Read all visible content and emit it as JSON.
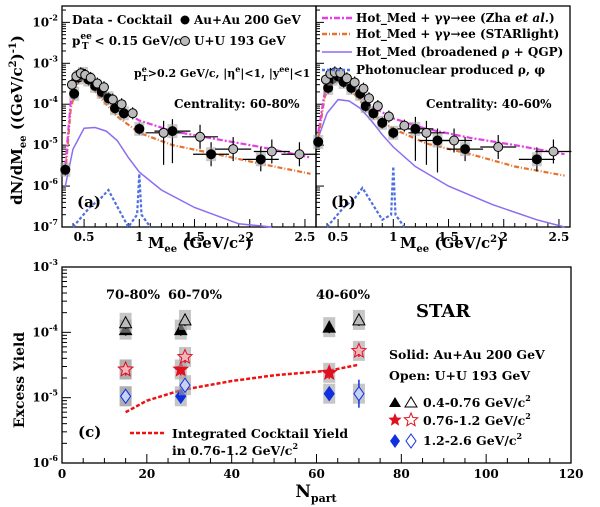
{
  "colors": {
    "frame": "#000000",
    "hot_med_zha": "#e53fe5",
    "hot_med_starlight": "#e8712d",
    "broadened": "#8c6cf0",
    "photonuclear": "#4f6fe0",
    "red_star": "#e01020",
    "blue_diamond": "#1030e0",
    "cocktail_line": "#ee1111",
    "sys_box": "#a0a0a0",
    "open_marker": "#bbbbbb"
  },
  "panel_a": {
    "tag": "(a)",
    "legend": {
      "row1": "Data - Cocktail",
      "au": "Au+Au 200 GeV",
      "row2": "p",
      "row2_sup": "ee",
      "row2_sub": "T",
      "row2_rest": "< 0.15 GeV/c",
      "uu": "U+U 193 GeV",
      "cut_p": "p",
      "cut_sup": "e",
      "cut_sub": "T",
      "cut_rest": ">0.2 GeV/c, |η",
      "cut_eta_sup": "e",
      "cut_mid": "|<1, |y",
      "cut_y_sup": "ee",
      "cut_end": "|<1",
      "centrality": "Centrality: 60-80%"
    }
  },
  "panel_b": {
    "tag": "(b)",
    "legend": {
      "l1a": "Hot_Med +  γγ→ee (Zha ",
      "l1b": "et al.",
      "l1c": ")",
      "l2": "Hot_Med +  γγ→ee (STARlight)",
      "l3": "Hot_Med (broadened  ρ + QGP)",
      "l4": "Photonuclear produced  ρ,  φ",
      "centrality": "Centrality: 40-60%"
    }
  },
  "panel_c": {
    "tag": "(c)",
    "star": "STAR",
    "solid": "Solid: Au+Au 200 GeV",
    "open": "Open: U+U 193 GeV",
    "bins": [
      "0.4-0.76 GeV/c",
      "0.76-1.2 GeV/c",
      "1.2-2.6  GeV/c"
    ],
    "bin_sup": "2",
    "cocktail1": "Integrated Cocktail Yield",
    "cocktail2": "in 0.76-1.2 GeV/c",
    "cocktail2_sup": "2",
    "cent_labels": [
      "70-80%",
      "60-70%",
      "40-60%"
    ]
  },
  "chart_data": [
    {
      "type": "scatter",
      "panel": "a",
      "xlabel": "M",
      "xlabel_sub": "ee",
      "xlabel_unit": " (GeV/c",
      "xlabel_sup": "2",
      "xlabel_end": ")",
      "ylabel": "dN/dM",
      "ylabel_sub": "ee",
      "ylabel_unit": " ((GeV/c",
      "ylabel_sup": "2",
      "ylabel_end": ")",
      "ylabel_sup2": "-1",
      "ylabel_close": ")",
      "xlim": [
        0.3,
        2.6
      ],
      "ylim_log10": [
        -7,
        -1.6
      ],
      "x_ticks": [
        "0.5",
        "1",
        "1.5",
        "2",
        "2.5"
      ],
      "y_ticks": [
        "10^-7",
        "10^-6",
        "10^-5",
        "10^-4",
        "10^-3",
        "10^-2"
      ],
      "au_points": [
        [
          0.33,
          2.5e-06
        ],
        [
          0.41,
          0.00018
        ],
        [
          0.45,
          0.00045
        ],
        [
          0.49,
          0.00055
        ],
        [
          0.54,
          0.0004
        ],
        [
          0.6,
          0.00028
        ],
        [
          0.66,
          0.0002
        ],
        [
          0.72,
          0.00014
        ],
        [
          0.78,
          8e-05
        ],
        [
          0.86,
          6e-05
        ],
        [
          1.0,
          2.5e-05
        ],
        [
          1.3,
          2.2e-05
        ],
        [
          1.65,
          6e-06
        ],
        [
          2.1,
          4.5e-06
        ]
      ],
      "uu_points": [
        [
          0.39,
          0.0003
        ],
        [
          0.43,
          0.00048
        ],
        [
          0.47,
          0.00057
        ],
        [
          0.51,
          0.00052
        ],
        [
          0.56,
          0.00044
        ],
        [
          0.62,
          0.00032
        ],
        [
          0.68,
          0.00026
        ],
        [
          0.76,
          0.00013
        ],
        [
          0.84,
          0.0001
        ],
        [
          0.94,
          6e-05
        ],
        [
          1.22,
          2e-05
        ],
        [
          1.55,
          1.6e-05
        ],
        [
          1.85,
          8e-06
        ],
        [
          2.2,
          7e-06
        ],
        [
          2.45,
          6e-06
        ]
      ],
      "curve_zha": [
        [
          0.33,
          3e-06
        ],
        [
          0.38,
          0.00012
        ],
        [
          0.45,
          0.00055
        ],
        [
          0.52,
          0.0005
        ],
        [
          0.6,
          0.0003
        ],
        [
          0.7,
          0.00016
        ],
        [
          0.8,
          8e-05
        ],
        [
          1.0,
          4e-05
        ],
        [
          1.3,
          2.2e-05
        ],
        [
          1.7,
          1.4e-05
        ],
        [
          2.1,
          9e-06
        ],
        [
          2.55,
          5e-06
        ]
      ],
      "curve_starlight": [
        [
          0.33,
          2e-06
        ],
        [
          0.38,
          8e-05
        ],
        [
          0.45,
          0.0004
        ],
        [
          0.52,
          0.00035
        ],
        [
          0.6,
          0.0002
        ],
        [
          0.7,
          0.0001
        ],
        [
          0.8,
          5e-05
        ],
        [
          1.0,
          2e-05
        ],
        [
          1.3,
          1e-05
        ],
        [
          1.7,
          6e-06
        ],
        [
          2.1,
          3.5e-06
        ],
        [
          2.55,
          2e-06
        ]
      ],
      "curve_broadened": [
        [
          0.33,
          1e-06
        ],
        [
          0.4,
          8e-06
        ],
        [
          0.5,
          2.6e-05
        ],
        [
          0.6,
          2.7e-05
        ],
        [
          0.7,
          2.2e-05
        ],
        [
          0.8,
          1.3e-05
        ],
        [
          0.9,
          5e-06
        ],
        [
          1.0,
          2.2e-06
        ],
        [
          1.2,
          8e-07
        ],
        [
          1.5,
          3e-07
        ],
        [
          1.9,
          1.2e-07
        ],
        [
          2.2,
          7e-08
        ]
      ],
      "curve_photonuclear": [
        [
          0.4,
          7e-08
        ],
        [
          0.55,
          3e-07
        ],
        [
          0.65,
          5e-07
        ],
        [
          0.72,
          8e-07
        ],
        [
          0.78,
          4e-07
        ],
        [
          0.9,
          1e-07
        ],
        [
          0.98,
          2e-07
        ],
        [
          1.0,
          2e-06
        ],
        [
          1.02,
          2e-07
        ],
        [
          1.1,
          8e-08
        ]
      ]
    },
    {
      "type": "scatter",
      "panel": "b",
      "xlabel": "M",
      "xlabel_sub": "ee",
      "xlabel_unit": " (GeV/c",
      "xlabel_sup": "2",
      "xlabel_end": ")",
      "xlim": [
        0.3,
        2.6
      ],
      "ylim_log10": [
        -7,
        -1.6
      ],
      "x_ticks": [
        "0.5",
        "1",
        "1.5",
        "2",
        "2.5"
      ],
      "au_points": [
        [
          0.32,
          1.2e-05
        ],
        [
          0.41,
          0.00025
        ],
        [
          0.45,
          0.00042
        ],
        [
          0.5,
          0.00048
        ],
        [
          0.55,
          0.00035
        ],
        [
          0.62,
          0.00025
        ],
        [
          0.7,
          0.00018
        ],
        [
          0.75,
          9e-05
        ],
        [
          0.82,
          6e-05
        ],
        [
          0.9,
          3.5e-05
        ],
        [
          1.0,
          2e-05
        ],
        [
          1.2,
          2.5e-05
        ],
        [
          1.4,
          1.3e-05
        ],
        [
          1.65,
          8e-06
        ],
        [
          2.3,
          4.5e-06
        ]
      ],
      "uu_points": [
        [
          0.39,
          0.0004
        ],
        [
          0.43,
          0.00055
        ],
        [
          0.47,
          0.0006
        ],
        [
          0.52,
          0.00058
        ],
        [
          0.58,
          0.00043
        ],
        [
          0.65,
          0.00034
        ],
        [
          0.73,
          0.00024
        ],
        [
          0.78,
          0.00014
        ],
        [
          0.86,
          9e-05
        ],
        [
          0.96,
          5e-05
        ],
        [
          1.1,
          3e-05
        ],
        [
          1.3,
          2e-05
        ],
        [
          1.55,
          1.3e-05
        ],
        [
          1.95,
          9e-06
        ],
        [
          2.45,
          7e-06
        ]
      ],
      "curve_zha": [
        [
          0.32,
          2e-05
        ],
        [
          0.38,
          0.0002
        ],
        [
          0.45,
          0.0006
        ],
        [
          0.52,
          0.00055
        ],
        [
          0.6,
          0.00035
        ],
        [
          0.7,
          0.00018
        ],
        [
          0.8,
          9e-05
        ],
        [
          1.0,
          4.5e-05
        ],
        [
          1.3,
          2.5e-05
        ],
        [
          1.7,
          1.5e-05
        ],
        [
          2.1,
          1e-05
        ],
        [
          2.55,
          6e-06
        ]
      ],
      "curve_starlight": [
        [
          0.32,
          1.5e-05
        ],
        [
          0.38,
          0.00015
        ],
        [
          0.45,
          0.00045
        ],
        [
          0.52,
          0.0004
        ],
        [
          0.6,
          0.00025
        ],
        [
          0.7,
          0.00012
        ],
        [
          0.8,
          6e-05
        ],
        [
          1.0,
          2.5e-05
        ],
        [
          1.3,
          1.1e-05
        ],
        [
          1.7,
          6e-06
        ],
        [
          2.1,
          3e-06
        ],
        [
          2.55,
          1.8e-06
        ]
      ],
      "curve_broadened": [
        [
          0.32,
          1.5e-05
        ],
        [
          0.4,
          6e-05
        ],
        [
          0.5,
          0.00013
        ],
        [
          0.6,
          0.00012
        ],
        [
          0.7,
          8e-05
        ],
        [
          0.8,
          4e-05
        ],
        [
          0.9,
          1.8e-05
        ],
        [
          1.0,
          9e-06
        ],
        [
          1.2,
          3e-06
        ],
        [
          1.5,
          1e-06
        ],
        [
          1.9,
          3.5e-07
        ],
        [
          2.3,
          1.5e-07
        ],
        [
          2.55,
          9e-08
        ]
      ],
      "curve_photonuclear": [
        [
          0.4,
          1e-07
        ],
        [
          0.55,
          3e-07
        ],
        [
          0.65,
          5e-07
        ],
        [
          0.72,
          9e-07
        ],
        [
          0.78,
          5e-07
        ],
        [
          0.9,
          1.5e-07
        ],
        [
          0.98,
          2e-07
        ],
        [
          1.0,
          3e-06
        ],
        [
          1.02,
          2e-07
        ],
        [
          1.1,
          8e-08
        ]
      ]
    },
    {
      "type": "scatter",
      "panel": "c",
      "xlabel": "N",
      "xlabel_sub": "part",
      "ylabel": "Excess Yield",
      "xlim": [
        0,
        120
      ],
      "ylim_log10": [
        -6,
        -3
      ],
      "x_ticks": [
        "0",
        "20",
        "40",
        "60",
        "80",
        "100",
        "120"
      ],
      "y_ticks": [
        "10^-6",
        "10^-5",
        "10^-4",
        "10^-3"
      ],
      "series": [
        {
          "name": "0.4-0.76 GeV/c2",
          "solid": [
            [
              15,
              0.00011
            ],
            [
              28,
              0.00011
            ],
            [
              63,
              0.00012
            ]
          ],
          "open": [
            [
              15,
              0.00014
            ],
            [
              29,
              0.000155
            ],
            [
              70,
              0.000155
            ]
          ]
        },
        {
          "name": "0.76-1.2 GeV/c2",
          "solid": [
            [
              15,
              2.7e-05
            ],
            [
              28,
              2.7e-05
            ],
            [
              63,
              2.4e-05
            ]
          ],
          "open": [
            [
              15,
              2.7e-05
            ],
            [
              29,
              4.2e-05
            ],
            [
              70,
              5.2e-05
            ]
          ]
        },
        {
          "name": "1.2-2.6 GeV/c2",
          "solid": [
            [
              15,
              1.05e-05
            ],
            [
              28,
              1.05e-05
            ],
            [
              63,
              1.15e-05
            ]
          ],
          "open": [
            [
              15,
              1.05e-05
            ],
            [
              29,
              1.55e-05
            ],
            [
              70,
              1.15e-05
            ]
          ]
        }
      ],
      "cocktail_curve": [
        [
          15,
          6e-06
        ],
        [
          20,
          9e-06
        ],
        [
          28,
          1.3e-05
        ],
        [
          40,
          1.8e-05
        ],
        [
          50,
          2.2e-05
        ],
        [
          63,
          2.6e-05
        ],
        [
          70,
          3.2e-05
        ]
      ]
    }
  ]
}
